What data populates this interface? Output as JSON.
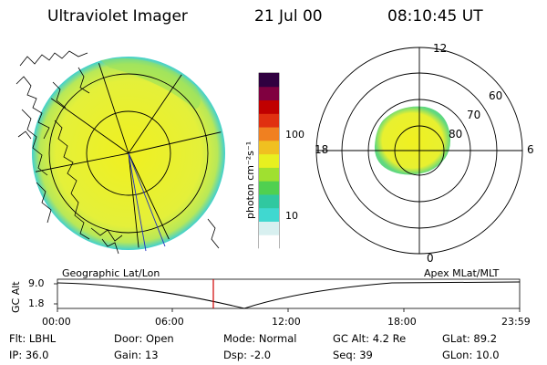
{
  "header": {
    "title": "Ultraviolet Imager",
    "date": "21 Jul 00",
    "time": "08:10:45 UT"
  },
  "colorbar": {
    "unit_label": "photon cm⁻²s⁻¹",
    "tick_labels": [
      "100",
      "10"
    ],
    "colors": [
      "#ffffff",
      "#d8f0f0",
      "#40d8d0",
      "#30c8a0",
      "#50d050",
      "#a0e030",
      "#e8f020",
      "#f0c020",
      "#f08020",
      "#e03010",
      "#c00000",
      "#800040",
      "#300040"
    ]
  },
  "polar_plot": {
    "mlt_labels": [
      "12",
      "18",
      "6",
      "0"
    ],
    "lat_labels": [
      "60",
      "70",
      "80"
    ]
  },
  "timeline": {
    "left_label": "Geographic Lat/Lon",
    "right_label": "Apex MLat/MLT",
    "axis_title": "GC Alt",
    "y_ticks": [
      "9.0",
      "1.8"
    ],
    "x_ticks": [
      "00:00",
      "06:00",
      "12:00",
      "18:00",
      "23:59"
    ],
    "marker_color": "#d00000"
  },
  "footer": {
    "row1": {
      "flt": "Flt: LBHL",
      "door": "Door: Open",
      "mode": "Mode: Normal",
      "gcalt": "GC Alt: 4.2 Re",
      "glat": "GLat:  89.2"
    },
    "row2": {
      "ip": "IP: 36.0",
      "gain": "Gain: 13",
      "dsp": "Dsp:    -2.0",
      "seq": "Seq: 39",
      "glon": "GLon:  10.0"
    }
  }
}
